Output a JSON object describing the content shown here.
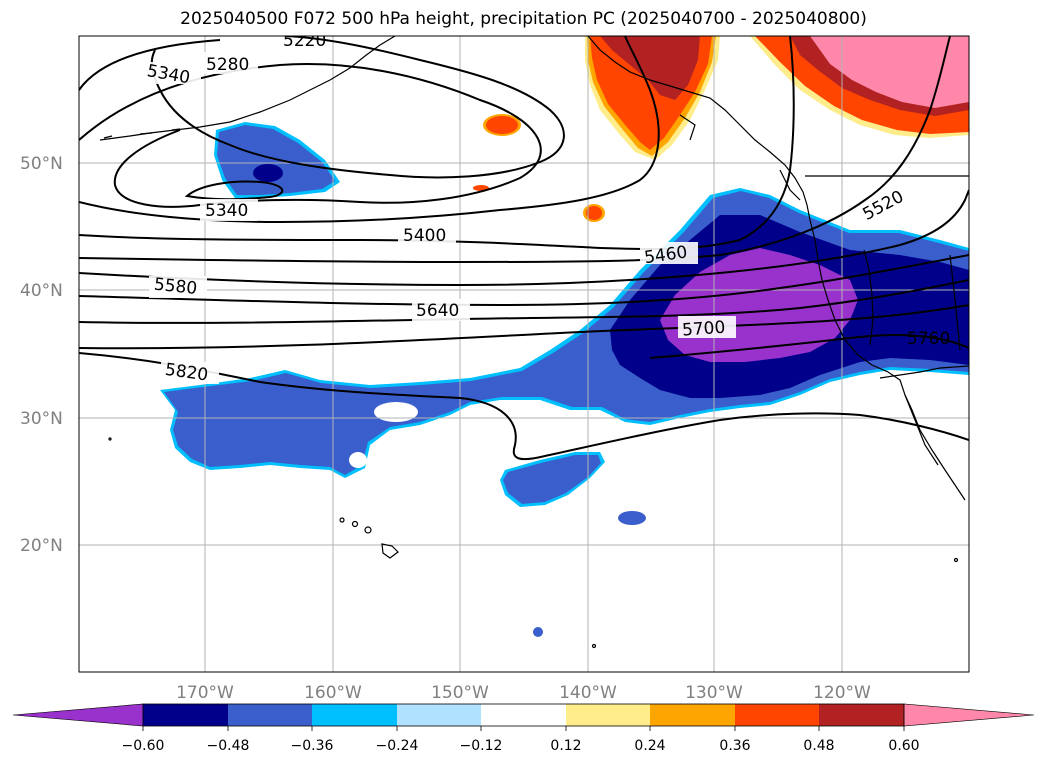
{
  "title": "2025040500 F072 500 hPa height, precipitation PC (2025040700 - 2025040800)",
  "map": {
    "lat_labels": [
      "50°N",
      "40°N",
      "30°N",
      "20°N"
    ],
    "lon_labels": [
      "170°W",
      "160°W",
      "150°W",
      "140°W",
      "130°W",
      "120°W"
    ],
    "contour_labels": [
      "5220",
      "5280",
      "5340",
      "5340",
      "5400",
      "5460",
      "5520",
      "5580",
      "5640",
      "5700",
      "5760",
      "5820"
    ]
  },
  "colorbar": {
    "ticks": [
      "−0.60",
      "−0.48",
      "−0.36",
      "−0.24",
      "−0.12",
      "0.12",
      "0.24",
      "0.36",
      "0.48",
      "0.60"
    ],
    "colors": [
      "#9932cc",
      "#00008b",
      "#3a5fcd",
      "#00bfff",
      "#b0e2ff",
      "#ffffff",
      "#ffec8b",
      "#ffa500",
      "#ff4500",
      "#b22222",
      "#ff88aa"
    ]
  }
}
